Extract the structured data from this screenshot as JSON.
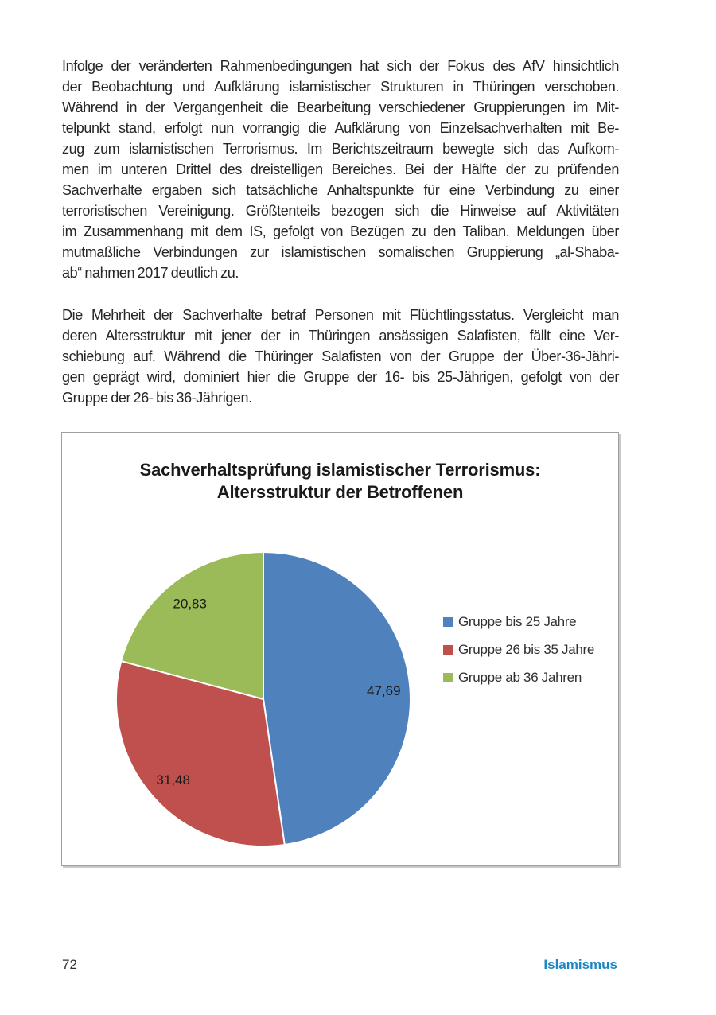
{
  "page": {
    "paragraphs": [
      {
        "lines": [
          "Infolge der veränderten Rahmenbedingungen hat sich der Fokus des AfV hinsichtlich",
          "der Beobachtung und Aufklärung islamistischer Strukturen in Thüringen verschoben.",
          "Während in der Vergangenheit die Bearbeitung verschiedener Gruppierungen im Mit-",
          "telpunkt stand, erfolgt nun vorrangig die Aufklärung von Einzelsachverhalten mit Be-",
          "zug zum islamistischen Terrorismus. Im Berichtszeitraum bewegte sich das Aufkom-",
          "men im unteren Drittel des dreistelligen Bereiches. Bei der Hälfte der zu prüfenden",
          "Sachverhalte ergaben sich tatsächliche Anhaltspunkte für eine Verbindung zu einer",
          "terroristischen Vereinigung. Größtenteils bezogen sich die Hinweise auf Aktivitäten",
          "im Zusammenhang mit dem IS, gefolgt von Bezügen zu den Taliban. Meldungen über",
          "mutmaßliche Verbindungen zur islamistischen somalischen Gruppierung „al-Shaba-",
          "ab“ nahmen 2017 deutlich zu."
        ]
      },
      {
        "lines": [
          "Die Mehrheit der Sachverhalte betraf Personen mit Flüchtlingsstatus. Vergleicht man",
          "deren Altersstruktur mit jener der in Thüringen ansässigen Salafisten, fällt eine Ver-",
          "schiebung auf. Während die Thüringer Salafisten von der Gruppe der Über-36-Jähri-",
          "gen geprägt wird, dominiert hier die Gruppe der 16- bis 25-Jährigen, gefolgt von der",
          "Gruppe der 26- bis 36-Jährigen."
        ]
      }
    ],
    "footer": {
      "page_number": "72",
      "section_label": "Islamismus",
      "section_color": "#1B86C3"
    }
  },
  "chart_data": {
    "type": "pie",
    "title": "Sachverhaltsprüfung islamistischer Terrorismus: Altersstruktur der Betroffenen",
    "title_lines": [
      "Sachverhaltsprüfung islamistischer Terrorismus:",
      "Altersstruktur der Betroffenen"
    ],
    "slices": [
      {
        "label": "Gruppe bis 25 Jahre",
        "value": 47.69,
        "display": "47,69",
        "color": "#4F81BD"
      },
      {
        "label": "Gruppe 26 bis 35 Jahre",
        "value": 31.48,
        "display": "31,48",
        "color": "#C0504D"
      },
      {
        "label": "Gruppe ab 36 Jahren",
        "value": 20.83,
        "display": "20,83",
        "color": "#9BBB59"
      }
    ],
    "start_angle_deg": 0,
    "direction": "clockwise",
    "legend_position": "right",
    "number_format": "comma-decimal",
    "label_color": "#1a1a1a"
  }
}
